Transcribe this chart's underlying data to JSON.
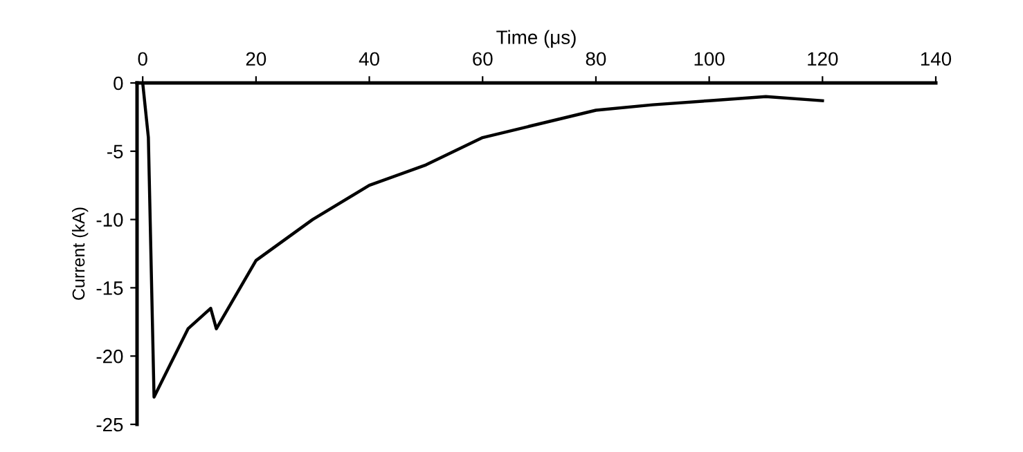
{
  "chart_data": {
    "type": "line",
    "xlabel": "Time (μs)",
    "ylabel": "Current (kA)",
    "x": [
      0,
      1,
      2,
      5,
      8,
      12,
      13,
      20,
      30,
      40,
      50,
      60,
      70,
      80,
      90,
      100,
      110,
      120
    ],
    "series": [
      {
        "color": "#000000",
        "values": [
          0,
          -4,
          -23,
          -20.5,
          -18,
          -16.5,
          -18,
          -13,
          -10,
          -7.5,
          -6,
          -4,
          -3,
          -2,
          -1.6,
          -1.3,
          -1,
          -1.3
        ]
      }
    ],
    "xlim": [
      -1,
      140
    ],
    "xticks": [
      0,
      20,
      40,
      60,
      80,
      100,
      120,
      140
    ],
    "ylim": [
      -25,
      0
    ],
    "yticks": [
      -25,
      -20,
      -15,
      -10,
      -5,
      0
    ],
    "grid": false,
    "legend": false,
    "marker": "none",
    "line_style": "solid"
  }
}
